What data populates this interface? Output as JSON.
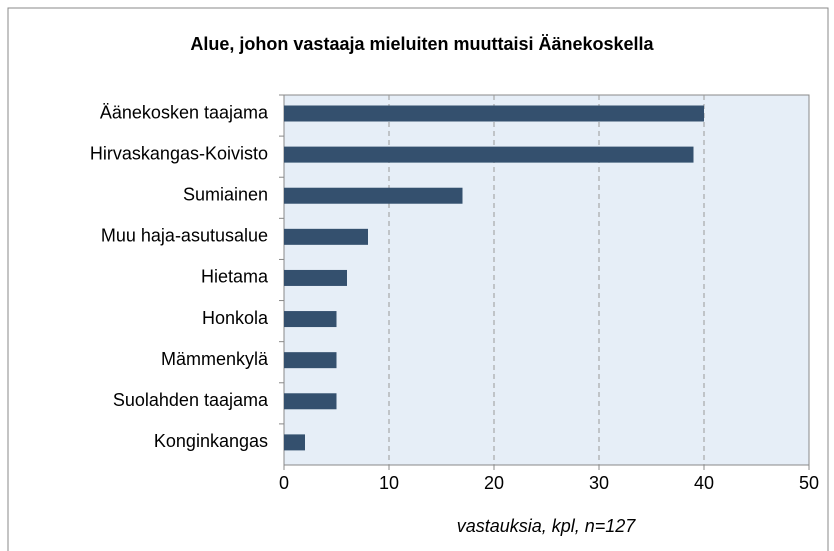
{
  "chart_data": {
    "type": "bar",
    "orientation": "horizontal",
    "title": "Alue, johon vastaaja mieluiten muuttaisi Äänekoskella",
    "x_label": "vastauksia, kpl, n=127",
    "categories": [
      "Äänekosken taajama",
      "Hirvaskangas-Koivisto",
      "Sumiainen",
      "Muu haja-asutusalue",
      "Hietama",
      "Honkola",
      "Mämmenkylä",
      "Suolahden taajama",
      "Konginkangas"
    ],
    "values": [
      40,
      39,
      17,
      8,
      6,
      5,
      5,
      5,
      2
    ],
    "color": "#34506e",
    "plot_background": "#e6eef7",
    "xlim": [
      0,
      50
    ],
    "xticks": [
      0,
      10,
      20,
      30,
      40,
      50
    ],
    "grid": true
  }
}
